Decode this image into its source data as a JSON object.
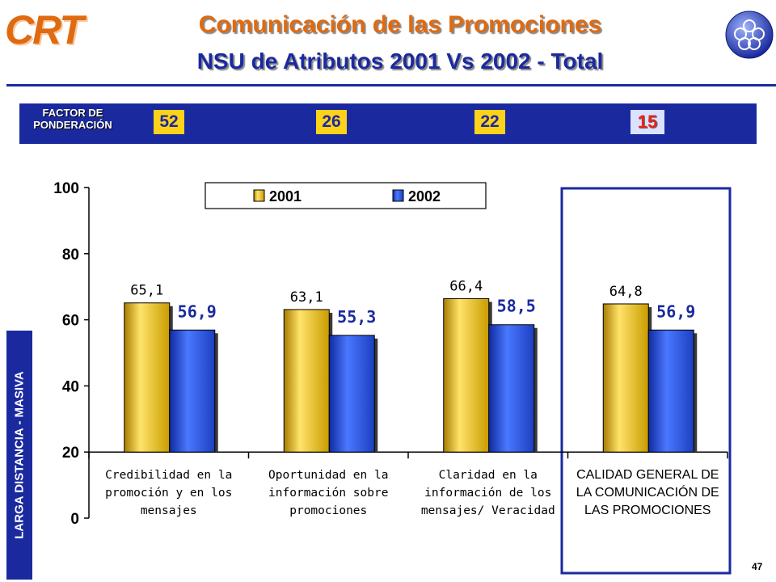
{
  "brand": {
    "logo_text": "CRT"
  },
  "header": {
    "title": "Comunicación de las Promociones",
    "subtitle": "NSU de Atributos 2001 Vs 2002 - Total"
  },
  "factor": {
    "label": "FACTOR DE PONDERACIÓN",
    "values": [
      "52",
      "26",
      "22",
      "15"
    ]
  },
  "side_label": "LARGA DISTANCIA - MASIVA",
  "page_number": "47",
  "colors": {
    "accent": "#e06a10",
    "navy": "#1a2a9e",
    "series_2001": "#f2c400",
    "series_2002": "#2a56e0"
  },
  "chart_data": {
    "type": "bar",
    "categories": [
      "Credibilidad en la promoción y en los mensajes",
      "Oportunidad en la información sobre promociones",
      "Claridad en la información de los mensajes/ Veracidad",
      "CALIDAD GENERAL DE LA COMUNICACIÓN DE LAS PROMOCIONES"
    ],
    "series": [
      {
        "name": "2001",
        "values": [
          65.1,
          63.1,
          66.4,
          64.8
        ],
        "labels": [
          "65,1",
          "63,1",
          "66,4",
          "64,8"
        ]
      },
      {
        "name": "2002",
        "values": [
          56.9,
          55.3,
          58.5,
          56.9
        ],
        "labels": [
          "56,9",
          "55,3",
          "58,5",
          "56,9"
        ]
      }
    ],
    "yticks": [
      0,
      20,
      40,
      60,
      80,
      100
    ],
    "ylim": [
      0,
      100
    ],
    "legend_position": "top-center",
    "highlight_category": 3
  }
}
